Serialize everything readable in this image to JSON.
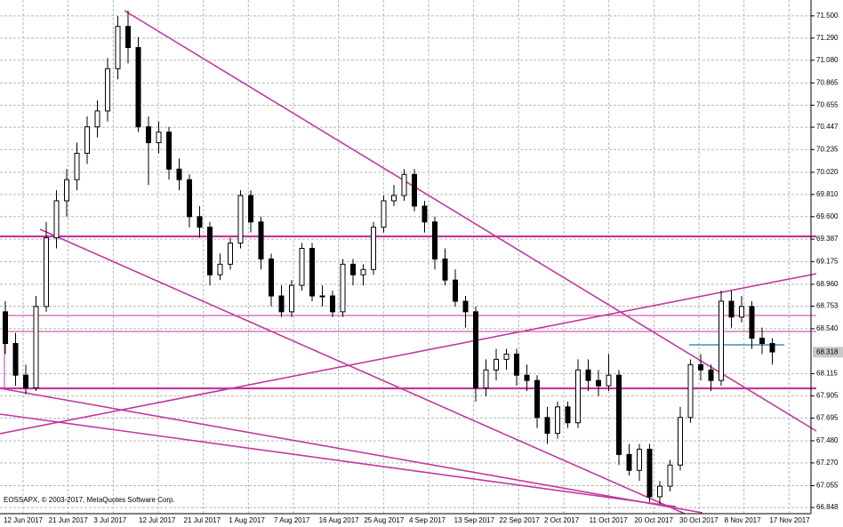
{
  "chart_data": {
    "type": "candlestick",
    "watermark": "EOSSAPX, © 2003-2017, MetaQuotes Software Corp.",
    "ylim": [
      66.79,
      71.65
    ],
    "yticks": [
      {
        "value": 71.5,
        "label": "71.500"
      },
      {
        "value": 71.29,
        "label": "71.290"
      },
      {
        "value": 71.08,
        "label": "71.080"
      },
      {
        "value": 70.865,
        "label": "70.865"
      },
      {
        "value": 70.655,
        "label": "70.655"
      },
      {
        "value": 70.447,
        "label": "70.447"
      },
      {
        "value": 70.235,
        "label": "70.235"
      },
      {
        "value": 70.02,
        "label": "70.020"
      },
      {
        "value": 69.81,
        "label": "69.810"
      },
      {
        "value": 69.6,
        "label": "69.600"
      },
      {
        "value": 69.387,
        "label": "69.387"
      },
      {
        "value": 69.175,
        "label": "69.175"
      },
      {
        "value": 68.96,
        "label": "68.960"
      },
      {
        "value": 68.753,
        "label": "68.753"
      },
      {
        "value": 68.54,
        "label": "68.540"
      },
      {
        "value": 68.115,
        "label": "68.115"
      },
      {
        "value": 67.905,
        "label": "67.905"
      },
      {
        "value": 67.695,
        "label": "67.695"
      },
      {
        "value": 67.48,
        "label": "67.480"
      },
      {
        "value": 67.27,
        "label": "67.270"
      },
      {
        "value": 67.055,
        "label": "67.055"
      },
      {
        "value": 66.848,
        "label": "66.848"
      }
    ],
    "last_price": 68.318,
    "x_labels": [
      "12 Jun 2017",
      "21 Jun 2017",
      "3 Jul 2017",
      "12 Jul 2017",
      "21 Jul 2017",
      "1 Aug 2017",
      "7 Aug 2017",
      "16 Aug 2017",
      "25 Aug 2017",
      "4 Sep 2017",
      "13 Sep 2017",
      "22 Sep 2017",
      "2 Oct 2017",
      "11 Oct 2017",
      "20 Oct 2017",
      "30 Oct 2017",
      "8 Nov 2017",
      "17 Nov 2017"
    ],
    "grid": true,
    "up_color": "#ffffff",
    "down_color": "#000000",
    "edge_color": "#000000",
    "ohlc": [
      [
        68.7,
        68.8,
        68.3,
        68.4
      ],
      [
        68.4,
        68.5,
        68.0,
        68.1
      ],
      [
        68.1,
        68.2,
        67.92,
        67.98
      ],
      [
        67.98,
        68.85,
        67.95,
        68.75
      ],
      [
        68.75,
        69.55,
        68.7,
        69.4
      ],
      [
        69.4,
        69.85,
        69.3,
        69.75
      ],
      [
        69.75,
        70.05,
        69.6,
        69.95
      ],
      [
        69.95,
        70.3,
        69.85,
        70.2
      ],
      [
        70.2,
        70.55,
        70.1,
        70.45
      ],
      [
        70.45,
        70.7,
        70.35,
        70.6
      ],
      [
        70.6,
        71.1,
        70.5,
        71.0
      ],
      [
        71.0,
        71.5,
        70.9,
        71.4
      ],
      [
        71.4,
        71.55,
        71.05,
        71.2
      ],
      [
        71.2,
        71.3,
        70.4,
        70.45
      ],
      [
        70.45,
        70.55,
        69.9,
        70.3
      ],
      [
        70.3,
        70.5,
        70.2,
        70.4
      ],
      [
        70.4,
        70.45,
        69.95,
        70.05
      ],
      [
        70.05,
        70.15,
        69.85,
        69.95
      ],
      [
        69.95,
        70.0,
        69.5,
        69.6
      ],
      [
        69.6,
        69.7,
        69.4,
        69.5
      ],
      [
        69.5,
        69.55,
        68.95,
        69.05
      ],
      [
        69.05,
        69.25,
        69.0,
        69.15
      ],
      [
        69.15,
        69.4,
        69.1,
        69.35
      ],
      [
        69.35,
        69.85,
        69.3,
        69.8
      ],
      [
        69.8,
        69.85,
        69.45,
        69.55
      ],
      [
        69.55,
        69.6,
        69.1,
        69.2
      ],
      [
        69.2,
        69.25,
        68.75,
        68.85
      ],
      [
        68.85,
        68.95,
        68.65,
        68.7
      ],
      [
        68.7,
        69.0,
        68.65,
        68.95
      ],
      [
        68.95,
        69.35,
        68.9,
        69.3
      ],
      [
        69.3,
        69.35,
        68.8,
        68.85
      ],
      [
        68.85,
        68.95,
        68.75,
        68.85
      ],
      [
        68.85,
        68.9,
        68.65,
        68.7
      ],
      [
        68.7,
        69.2,
        68.65,
        69.15
      ],
      [
        69.15,
        69.2,
        68.95,
        69.05
      ],
      [
        69.05,
        69.15,
        68.95,
        69.1
      ],
      [
        69.1,
        69.55,
        69.05,
        69.5
      ],
      [
        69.5,
        69.8,
        69.45,
        69.75
      ],
      [
        69.75,
        69.9,
        69.7,
        69.8
      ],
      [
        69.8,
        70.05,
        69.75,
        70.0
      ],
      [
        70.0,
        70.05,
        69.65,
        69.7
      ],
      [
        69.7,
        69.75,
        69.45,
        69.55
      ],
      [
        69.55,
        69.6,
        69.1,
        69.2
      ],
      [
        69.2,
        69.3,
        68.95,
        69.0
      ],
      [
        69.0,
        69.1,
        68.75,
        68.8
      ],
      [
        68.8,
        68.85,
        68.55,
        68.7
      ],
      [
        68.7,
        68.75,
        67.85,
        67.98
      ],
      [
        67.98,
        68.25,
        67.9,
        68.15
      ],
      [
        68.15,
        68.35,
        68.05,
        68.25
      ],
      [
        68.25,
        68.35,
        68.15,
        68.3
      ],
      [
        68.3,
        68.35,
        68.0,
        68.1
      ],
      [
        68.1,
        68.2,
        67.95,
        68.05
      ],
      [
        68.05,
        68.1,
        67.6,
        67.7
      ],
      [
        67.7,
        67.8,
        67.45,
        67.55
      ],
      [
        67.55,
        67.85,
        67.5,
        67.8
      ],
      [
        67.8,
        67.85,
        67.6,
        67.65
      ],
      [
        67.65,
        68.25,
        67.6,
        68.15
      ],
      [
        68.15,
        68.25,
        67.95,
        68.05
      ],
      [
        68.05,
        68.15,
        67.9,
        68.0
      ],
      [
        68.0,
        68.3,
        67.95,
        68.1
      ],
      [
        68.1,
        68.15,
        67.25,
        67.35
      ],
      [
        67.35,
        67.45,
        67.15,
        67.2
      ],
      [
        67.2,
        67.45,
        67.1,
        67.4
      ],
      [
        67.4,
        67.45,
        66.9,
        66.95
      ],
      [
        66.95,
        67.1,
        66.88,
        67.05
      ],
      [
        67.05,
        67.3,
        67.0,
        67.25
      ],
      [
        67.25,
        67.8,
        67.2,
        67.7
      ],
      [
        67.7,
        68.25,
        67.65,
        68.2
      ],
      [
        68.2,
        68.3,
        68.05,
        68.15
      ],
      [
        68.15,
        68.2,
        67.95,
        68.05
      ],
      [
        68.05,
        68.9,
        68.0,
        68.8
      ],
      [
        68.8,
        68.9,
        68.55,
        68.65
      ],
      [
        68.65,
        68.85,
        68.6,
        68.75
      ],
      [
        68.75,
        68.8,
        68.35,
        68.45
      ],
      [
        68.45,
        68.55,
        68.3,
        68.4
      ],
      [
        68.4,
        68.45,
        68.2,
        68.32
      ]
    ]
  }
}
